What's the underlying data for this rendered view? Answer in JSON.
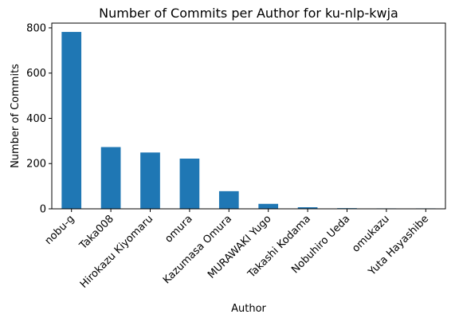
{
  "chart_data": {
    "type": "bar",
    "title": "Number of Commits per Author for ku-nlp-kwja",
    "xlabel": "Author",
    "ylabel": "Number of Commits",
    "categories": [
      "nobu-g",
      "Taka008",
      "Hirokazu Kiyomaru",
      "omura",
      "Kazumasa Omura",
      "MURAWAKI Yugo",
      "Takashi Kodama",
      "Nobuhiro Ueda",
      "omukazu",
      "Yuta Hayashibe"
    ],
    "values": [
      782,
      273,
      249,
      222,
      78,
      22,
      7,
      3,
      2,
      2
    ],
    "ylim": [
      0,
      821
    ],
    "yticks": [
      0,
      200,
      400,
      600,
      800
    ],
    "grid": false,
    "legend": "none",
    "bar_color": "#1f77b4",
    "x_tick_rotation_deg": 45
  }
}
